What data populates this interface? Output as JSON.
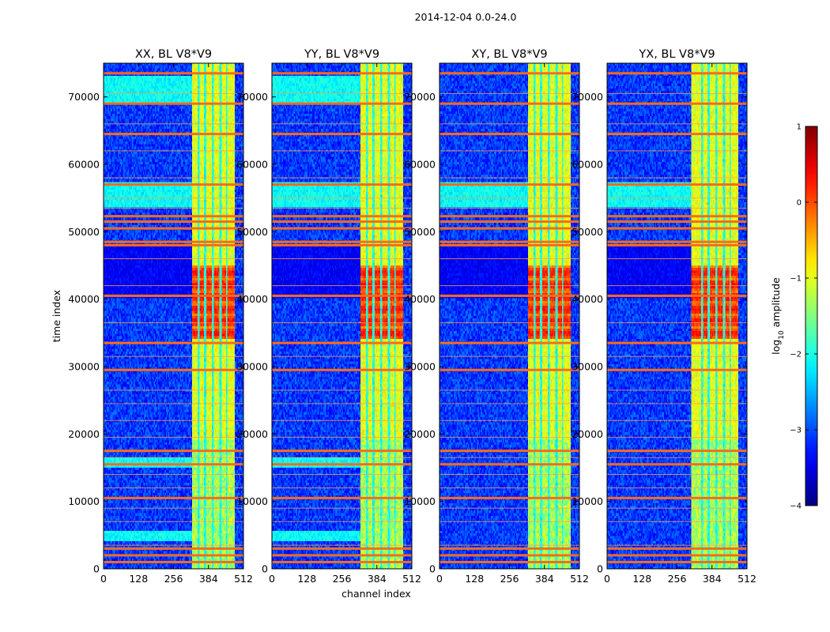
{
  "chart_data": {
    "type": "heatmap",
    "title": "2014-12-04 0.0-24.0",
    "xlabel": "channel index",
    "ylabel": "time index",
    "x_range": [
      0,
      512
    ],
    "y_range": [
      0,
      75000
    ],
    "x_ticks": [
      0,
      128,
      256,
      384,
      512
    ],
    "y_ticks": [
      0,
      10000,
      20000,
      30000,
      40000,
      50000,
      60000,
      70000
    ],
    "x_tick_labels": [
      "0",
      "128",
      "256",
      "384",
      "512"
    ],
    "y_tick_labels": [
      "0",
      "10000",
      "20000",
      "30000",
      "40000",
      "50000",
      "60000",
      "70000"
    ],
    "panels": [
      {
        "name": "XX, BL V8*V9",
        "pol": "XX",
        "band_start": 325,
        "burst_low_offset": 0
      },
      {
        "name": "YY, BL V8*V9",
        "pol": "YY",
        "band_start": 325,
        "burst_low_offset": 0
      },
      {
        "name": "XY, BL V8*V9",
        "pol": "XY",
        "band_start": 325,
        "burst_low_offset": 0
      },
      {
        "name": "YX, BL V8*V9",
        "pol": "YX",
        "band_start": 310,
        "burst_low_offset": 0
      }
    ],
    "bright_band_channels": [
      325,
      480
    ],
    "channel_gaps": [
      348,
      372,
      400,
      428,
      450
    ],
    "strong_burst_time": [
      34000,
      45000
    ],
    "enhanced_period_time": [
      0,
      19000
    ],
    "rfi_time_strong": [
      1000,
      2000,
      3000,
      10500,
      15500,
      17500,
      29500,
      33500,
      40500,
      48000,
      48500,
      50500,
      51500,
      52300,
      57000,
      64500,
      69000,
      73500
    ],
    "rfi_time_weak": [
      3500,
      7000,
      9000,
      12000,
      14000,
      16500,
      19500,
      22000,
      24500,
      26500,
      31500,
      36500,
      42000,
      46000,
      53500,
      55000,
      58000,
      62000,
      66000,
      70500
    ],
    "colorbar": {
      "label": "log10 amplitude",
      "label_base": "log",
      "label_sub": "10",
      "label_rest": " amplitude",
      "min": -4,
      "max": 1,
      "ticks": [
        1,
        0,
        -1,
        -2,
        -3,
        -4
      ],
      "tick_labels": [
        "1",
        "0",
        "−1",
        "−2",
        "−3",
        "−4"
      ],
      "colormap": "jet"
    }
  }
}
